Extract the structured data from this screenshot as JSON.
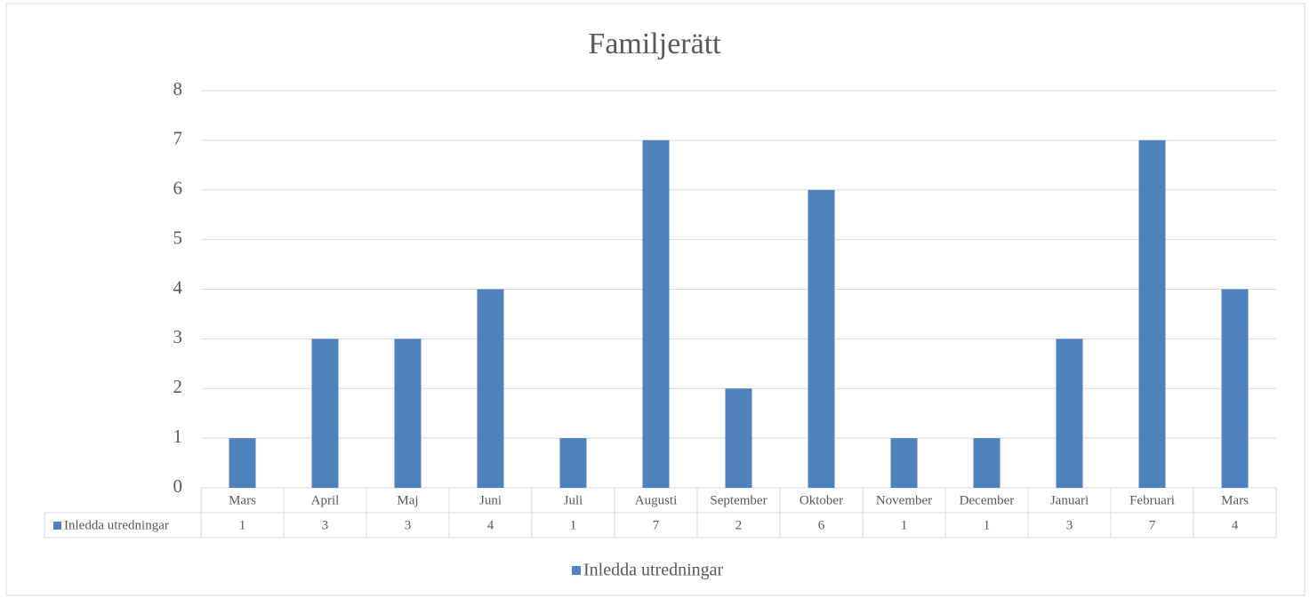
{
  "chart_data": {
    "type": "bar",
    "title": "Familjerätt",
    "categories": [
      "Mars",
      "April",
      "Maj",
      "Juni",
      "Juli",
      "Augusti",
      "September",
      "Oktober",
      "November",
      "December",
      "Januari",
      "Februari",
      "Mars"
    ],
    "series": [
      {
        "name": "Inledda utredningar",
        "color": "#4f81bd",
        "values": [
          1,
          3,
          3,
          4,
          1,
          7,
          2,
          6,
          1,
          1,
          3,
          7,
          4
        ]
      }
    ],
    "ylim": [
      0,
      8
    ],
    "yticks": [
      0,
      1,
      2,
      3,
      4,
      5,
      6,
      7,
      8
    ],
    "grid": true,
    "legend": "bottom",
    "data_table": true
  }
}
